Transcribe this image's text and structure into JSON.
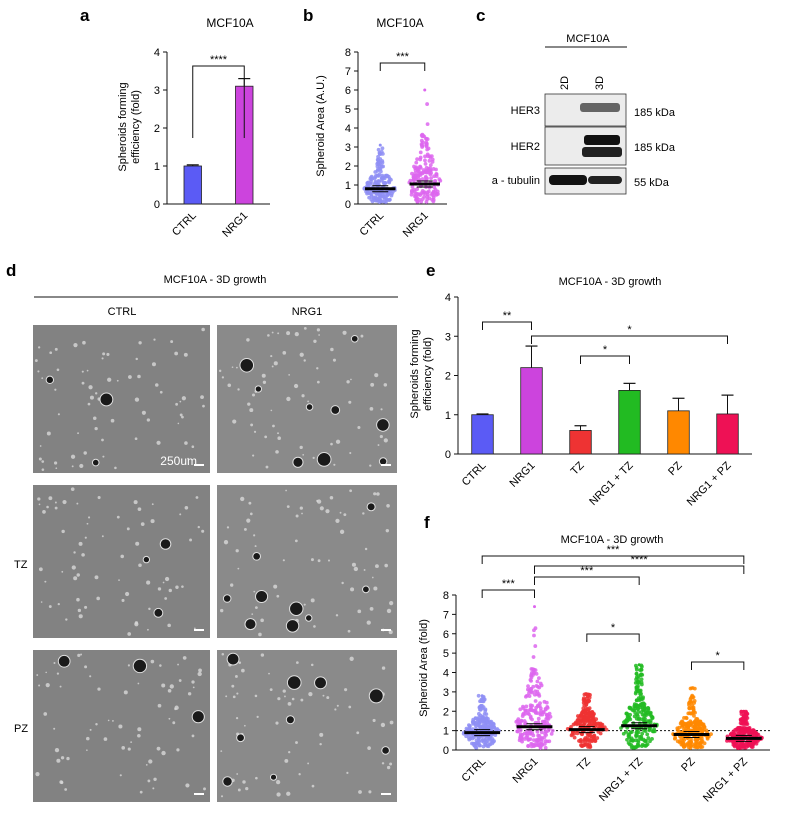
{
  "panels": {
    "a": {
      "letter": "a",
      "title": "MCF10A",
      "ylabel": "Spheroids forming efficiency (fold)",
      "ylabel_lines": [
        "Spheroids forming",
        "efficiency (fold)"
      ],
      "significance": "****"
    },
    "b": {
      "letter": "b",
      "title": "MCF10A",
      "ylabel": "Spheroid Area (A.U.)",
      "significance": "***"
    },
    "c": {
      "letter": "c",
      "title": "MCF10A",
      "lanes": [
        "2D",
        "3D"
      ],
      "rows": [
        {
          "label": "HER3",
          "size": "185 kDa"
        },
        {
          "label": "HER2",
          "size": "185 kDa"
        },
        {
          "label": "a - tubulin",
          "size": "55 kDa"
        }
      ]
    },
    "d": {
      "letter": "d",
      "title": "MCF10A - 3D growth",
      "columns": [
        "CTRL",
        "NRG1"
      ],
      "rows": [
        "",
        "TZ",
        "PZ"
      ],
      "scale_label": "250um"
    },
    "e": {
      "letter": "e",
      "title": "MCF10A - 3D growth",
      "ylabel": "Spheroids forming efficiency (fold)",
      "ylabel_lines": [
        "Spheroids forming",
        "efficiency (fold)"
      ],
      "brackets": [
        {
          "from": 0,
          "to": 1,
          "label": "**"
        },
        {
          "from": 2,
          "to": 3,
          "label": "*"
        },
        {
          "from": 1,
          "to": 5,
          "label": "*"
        }
      ]
    },
    "f": {
      "letter": "f",
      "title": "MCF10A - 3D growth",
      "ylabel": "Spheroid Area (fold)",
      "brackets": [
        {
          "from": 0,
          "to": 1,
          "label": "***"
        },
        {
          "from": 2,
          "to": 3,
          "label": "*"
        },
        {
          "from": 4,
          "to": 5,
          "label": "*"
        },
        {
          "from": 1,
          "to": 3,
          "label": "***"
        },
        {
          "from": 1,
          "to": 5,
          "label": "****"
        },
        {
          "from": 0,
          "to": 5,
          "label": "***"
        }
      ]
    }
  },
  "colors": {
    "ctrl": "#5b5bf5",
    "nrg1": "#cc44dd",
    "tz": "#ee3333",
    "nrg1_tz": "#22bb22",
    "pz": "#ff8800",
    "nrg1_pz": "#ee1155",
    "ctrl_dots": "#8f8ff5",
    "nrg1_dots": "#dd66ee"
  },
  "chart_data": [
    {
      "panel": "a",
      "type": "bar",
      "categories": [
        "CTRL",
        "NRG1"
      ],
      "values": [
        1.0,
        3.1
      ],
      "errors": [
        0.03,
        0.2
      ],
      "ylim": [
        0,
        4
      ],
      "yticks": [
        0,
        1,
        2,
        3,
        4
      ]
    },
    {
      "panel": "b",
      "type": "scatter",
      "categories": [
        "CTRL",
        "NRG1"
      ],
      "medians": [
        0.8,
        1.05
      ],
      "ranges": [
        [
          0.1,
          3.1
        ],
        [
          0.1,
          6.0
        ]
      ],
      "ylim": [
        0,
        8
      ],
      "yticks": [
        0,
        1,
        2,
        3,
        4,
        5,
        6,
        7,
        8
      ]
    },
    {
      "panel": "e",
      "type": "bar",
      "categories": [
        "CTRL",
        "NRG1",
        "TZ",
        "NRG1 + TZ",
        "PZ",
        "NRG1 + PZ"
      ],
      "values": [
        1.0,
        2.2,
        0.6,
        1.62,
        1.1,
        1.02
      ],
      "errors": [
        0.02,
        0.55,
        0.12,
        0.18,
        0.32,
        0.48
      ],
      "ylim": [
        0,
        4
      ],
      "yticks": [
        0,
        1,
        2,
        3,
        4
      ]
    },
    {
      "panel": "f",
      "type": "scatter",
      "categories": [
        "CTRL",
        "NRG1",
        "TZ",
        "NRG1 + TZ",
        "PZ",
        "NRG1 + PZ"
      ],
      "medians": [
        0.9,
        1.2,
        1.05,
        1.25,
        0.8,
        0.6
      ],
      "ranges": [
        [
          0.1,
          2.8
        ],
        [
          0.1,
          7.4
        ],
        [
          0.1,
          2.9
        ],
        [
          0.1,
          4.4
        ],
        [
          0.1,
          3.2
        ],
        [
          0.1,
          2.0
        ]
      ],
      "reference_line": 1.0,
      "ylim": [
        0,
        8
      ],
      "yticks": [
        0,
        1,
        2,
        3,
        4,
        5,
        6,
        7,
        8
      ]
    }
  ]
}
